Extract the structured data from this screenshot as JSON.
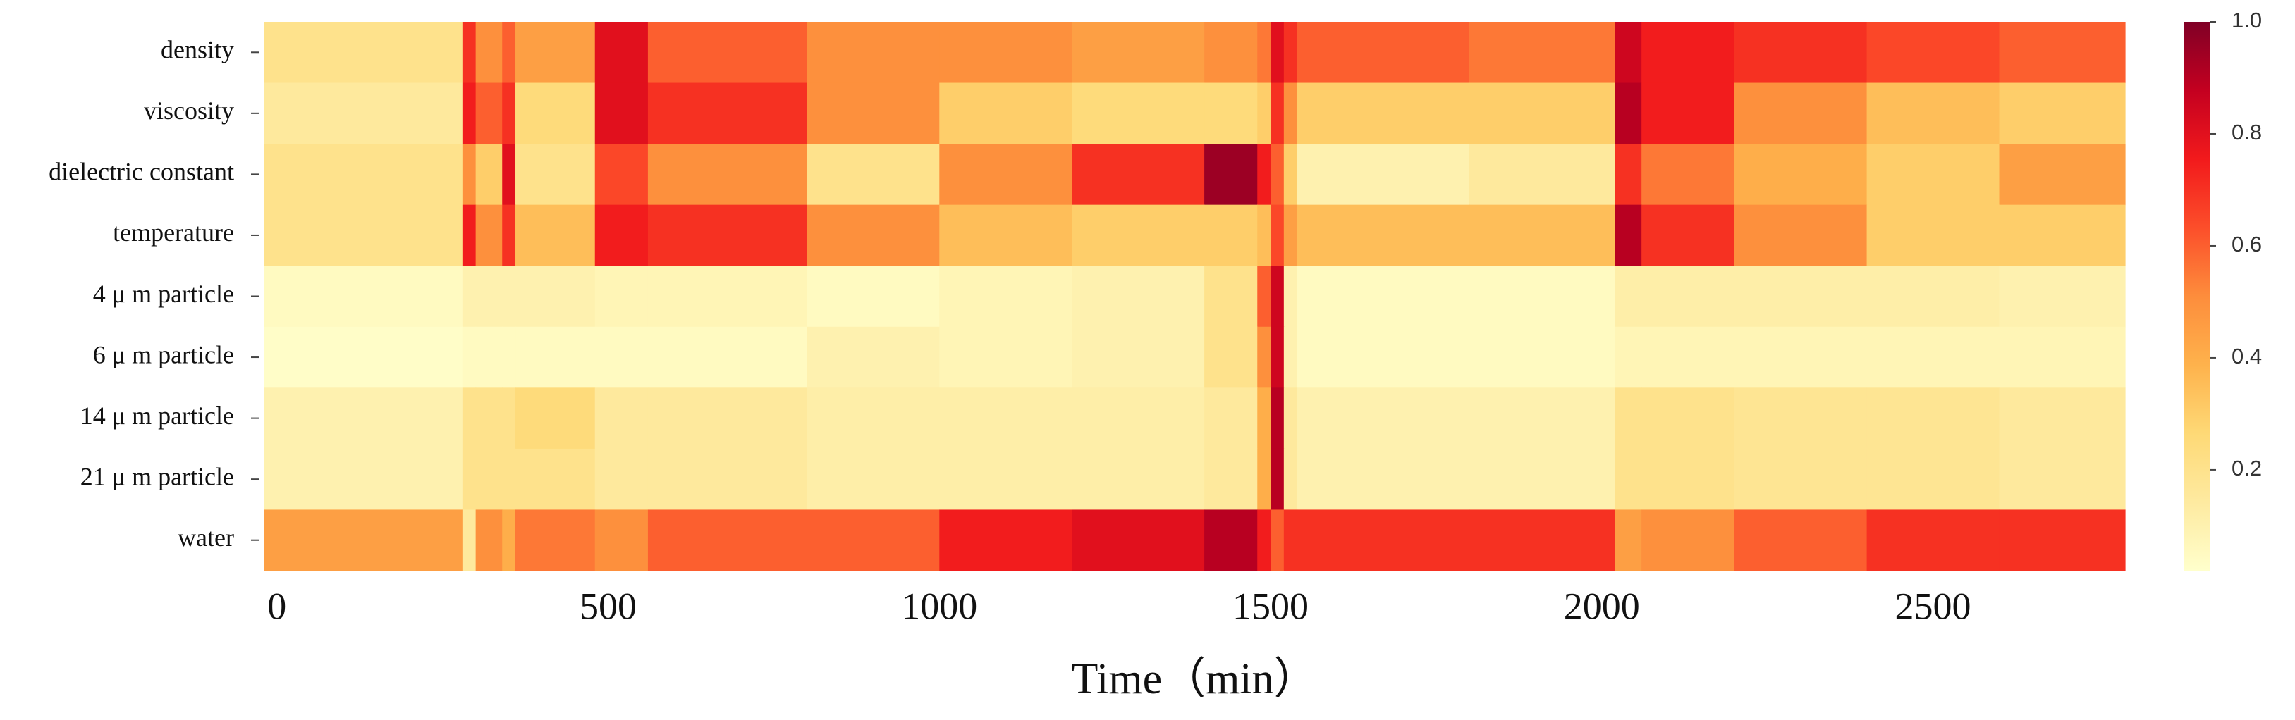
{
  "chart_data": {
    "type": "heatmap",
    "x_label": "Time（min）",
    "rows": [
      "density",
      "viscosity",
      "dielectric constant",
      "temperature",
      "4 μ m particle",
      "6 μ m particle",
      "14 μ m particle",
      "21 μ m particle",
      "water"
    ],
    "xbins": [
      -20,
      280,
      300,
      340,
      360,
      480,
      560,
      800,
      1000,
      1200,
      1400,
      1480,
      1500,
      1520,
      1540,
      1800,
      2020,
      2060,
      2200,
      2400,
      2600,
      2790
    ],
    "z": [
      [
        0.2,
        0.7,
        0.5,
        0.6,
        0.45,
        0.8,
        0.6,
        0.5,
        0.5,
        0.45,
        0.5,
        0.55,
        0.8,
        0.7,
        0.6,
        0.55,
        0.85,
        0.75,
        0.7,
        0.65,
        0.6
      ],
      [
        0.15,
        0.75,
        0.6,
        0.7,
        0.25,
        0.8,
        0.7,
        0.5,
        0.3,
        0.25,
        0.25,
        0.3,
        0.7,
        0.5,
        0.3,
        0.3,
        0.9,
        0.75,
        0.5,
        0.35,
        0.3
      ],
      [
        0.2,
        0.5,
        0.3,
        0.8,
        0.2,
        0.65,
        0.5,
        0.2,
        0.5,
        0.7,
        0.95,
        0.75,
        0.6,
        0.3,
        0.1,
        0.15,
        0.7,
        0.55,
        0.4,
        0.3,
        0.45
      ],
      [
        0.2,
        0.75,
        0.5,
        0.7,
        0.35,
        0.75,
        0.7,
        0.5,
        0.35,
        0.3,
        0.3,
        0.35,
        0.65,
        0.45,
        0.35,
        0.35,
        0.9,
        0.7,
        0.5,
        0.3,
        0.3
      ],
      [
        0.05,
        0.1,
        0.1,
        0.1,
        0.1,
        0.08,
        0.08,
        0.05,
        0.08,
        0.1,
        0.2,
        0.6,
        0.85,
        0.1,
        0.05,
        0.05,
        0.12,
        0.12,
        0.12,
        0.12,
        0.1
      ],
      [
        0.03,
        0.05,
        0.05,
        0.05,
        0.05,
        0.05,
        0.05,
        0.1,
        0.08,
        0.1,
        0.2,
        0.5,
        0.85,
        0.1,
        0.05,
        0.05,
        0.08,
        0.08,
        0.08,
        0.08,
        0.08
      ],
      [
        0.1,
        0.2,
        0.2,
        0.2,
        0.25,
        0.15,
        0.15,
        0.12,
        0.12,
        0.12,
        0.15,
        0.4,
        0.9,
        0.15,
        0.1,
        0.1,
        0.2,
        0.2,
        0.18,
        0.18,
        0.15
      ],
      [
        0.1,
        0.2,
        0.2,
        0.2,
        0.2,
        0.15,
        0.15,
        0.12,
        0.12,
        0.12,
        0.15,
        0.4,
        0.9,
        0.15,
        0.1,
        0.1,
        0.2,
        0.2,
        0.18,
        0.18,
        0.15
      ],
      [
        0.45,
        0.15,
        0.5,
        0.4,
        0.55,
        0.5,
        0.6,
        0.6,
        0.75,
        0.8,
        0.9,
        0.75,
        0.6,
        0.7,
        0.7,
        0.7,
        0.45,
        0.5,
        0.6,
        0.7,
        0.7
      ]
    ],
    "xlim": [
      -20,
      2790
    ],
    "xticks": [
      0,
      500,
      1000,
      1500,
      2000,
      2500
    ],
    "zlim": [
      0.02,
      1.0
    ],
    "colorbar_ticks": [
      0.2,
      0.4,
      0.6,
      0.8,
      {
        "value": 1,
        "label": "1.0"
      }
    ],
    "colorscale": [
      "#ffffcc",
      "#feeaa0",
      "#fed976",
      "#feb24c",
      "#fd8d3c",
      "#fc4e2a",
      "#f21a1c",
      "#c40020",
      "#800026"
    ]
  }
}
